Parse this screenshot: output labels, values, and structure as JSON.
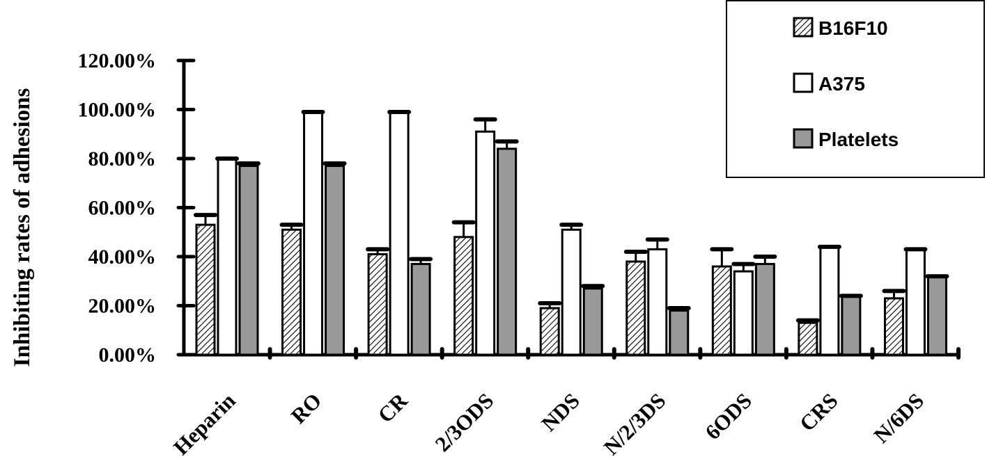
{
  "chart_data": {
    "type": "bar",
    "title": "",
    "xlabel": "",
    "ylabel": "Inhibiting  rates of  adhesions",
    "ylim": [
      0,
      1.2
    ],
    "yticks": [
      0,
      0.2,
      0.4,
      0.6,
      0.8,
      1.0,
      1.2
    ],
    "ytick_labels": [
      "0.00%",
      "20.00%",
      "40.00%",
      "60.00%",
      "80.00%",
      "100.00%",
      "120.00%"
    ],
    "categories": [
      "Heparin",
      "RO",
      "CR",
      "2/3ODS",
      "NDS",
      "N/2/3DS",
      "6ODS",
      "CRS",
      "N/6DS"
    ],
    "series": [
      {
        "name": "B16F10",
        "values": [
          0.53,
          0.51,
          0.41,
          0.48,
          0.19,
          0.38,
          0.36,
          0.13,
          0.23
        ],
        "errors": [
          0.04,
          0.02,
          0.02,
          0.06,
          0.02,
          0.04,
          0.07,
          0.01,
          0.03
        ],
        "fill": "hatch"
      },
      {
        "name": "A375",
        "values": [
          0.8,
          0.99,
          0.99,
          0.91,
          0.51,
          0.43,
          0.34,
          0.44,
          0.43
        ],
        "errors": [
          0.0,
          0.0,
          0.0,
          0.05,
          0.02,
          0.04,
          0.03,
          0.0,
          0.0
        ],
        "fill": "white"
      },
      {
        "name": "Platelets",
        "values": [
          0.77,
          0.77,
          0.37,
          0.84,
          0.27,
          0.18,
          0.37,
          0.24,
          0.32
        ],
        "errors": [
          0.01,
          0.01,
          0.02,
          0.03,
          0.01,
          0.01,
          0.03,
          0.0,
          0.0
        ],
        "fill": "gray"
      }
    ],
    "colors": {
      "hatch_fg": "#000000",
      "hatch_bg": "#ffffff",
      "white": "#ffffff",
      "gray": "#999999",
      "axis": "#000000"
    },
    "legend": "top-right",
    "grid": false
  }
}
